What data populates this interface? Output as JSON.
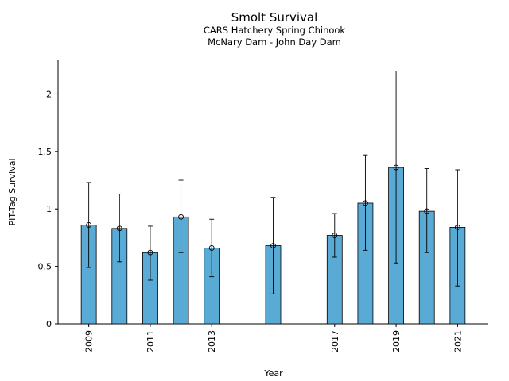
{
  "chart_data": {
    "type": "bar",
    "title": "Smolt Survival",
    "subtitle_lines": [
      "CARS Hatchery Spring Chinook",
      "McNary Dam - John Day Dam"
    ],
    "xlabel": "Year",
    "ylabel": "PIT-Tag Survival",
    "ylim": [
      0,
      2.3
    ],
    "xlim": [
      2008.0,
      2022.0
    ],
    "yticks": [
      "0",
      "0.5",
      "1",
      "1.5",
      "2"
    ],
    "xticks": [
      "2009",
      "2011",
      "2013",
      "2017",
      "2019",
      "2021"
    ],
    "grid": false,
    "bar_color": "#5aaad6",
    "x": [
      2009,
      2010,
      2011,
      2012,
      2013,
      2015,
      2017,
      2018,
      2019,
      2020,
      2021
    ],
    "values": [
      0.86,
      0.83,
      0.62,
      0.93,
      0.66,
      0.68,
      0.77,
      1.05,
      1.36,
      0.98,
      0.84
    ],
    "err_low": [
      0.49,
      0.54,
      0.38,
      0.62,
      0.41,
      0.26,
      0.58,
      0.64,
      0.53,
      0.62,
      0.33
    ],
    "err_high": [
      1.23,
      1.13,
      0.85,
      1.25,
      0.91,
      1.1,
      0.96,
      1.47,
      2.2,
      1.35,
      1.34
    ]
  }
}
